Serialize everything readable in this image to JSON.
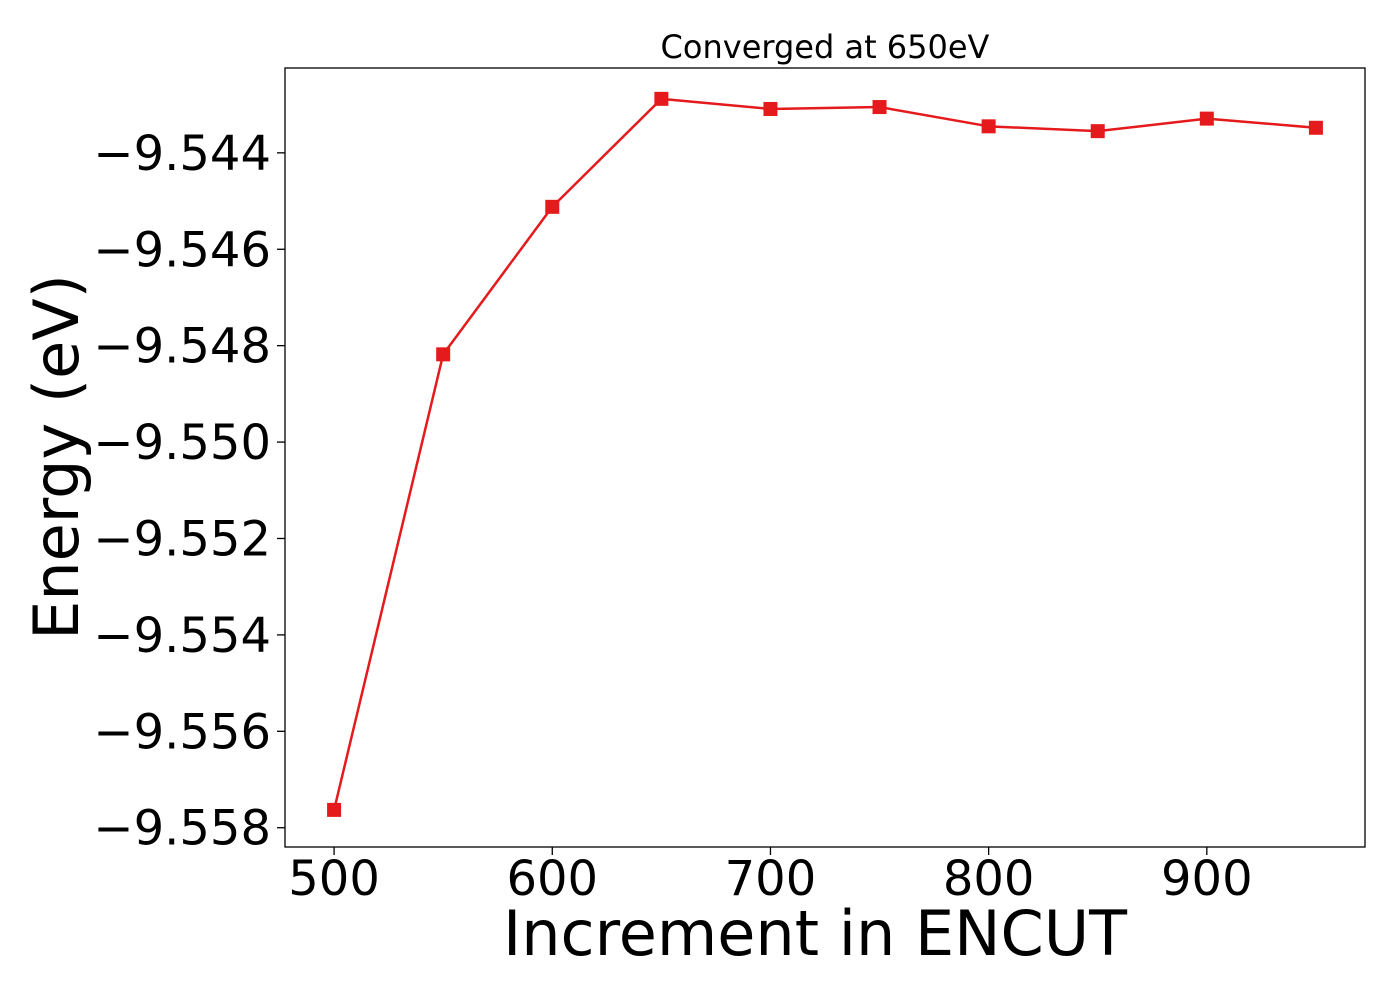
{
  "chart_data": {
    "type": "line",
    "title": "Converged at 650eV",
    "xlabel": "Increment in ENCUT",
    "ylabel": "Energy (eV)",
    "x": [
      500,
      550,
      600,
      650,
      700,
      750,
      800,
      850,
      900,
      950
    ],
    "series": [
      {
        "values": [
          -9.55763,
          -9.54818,
          -9.54512,
          -9.54288,
          -9.54309,
          -9.54305,
          -9.54345,
          -9.54355,
          -9.54329,
          -9.54348
        ],
        "color": "#e41a1c",
        "marker": "square"
      }
    ],
    "xlim": [
      477.5,
      972.5
    ],
    "ylim": [
      -9.5584,
      -9.54224
    ],
    "xticks": [
      500,
      600,
      700,
      800,
      900
    ],
    "xtick_labels": [
      "500",
      "600",
      "700",
      "800",
      "900"
    ],
    "yticks": [
      -9.558,
      -9.556,
      -9.554,
      -9.552,
      -9.55,
      -9.548,
      -9.546,
      -9.544
    ],
    "ytick_labels": [
      "−9.558",
      "−9.556",
      "−9.554",
      "−9.552",
      "−9.550",
      "−9.548",
      "−9.546",
      "−9.544"
    ],
    "grid": false,
    "legend": "none"
  }
}
